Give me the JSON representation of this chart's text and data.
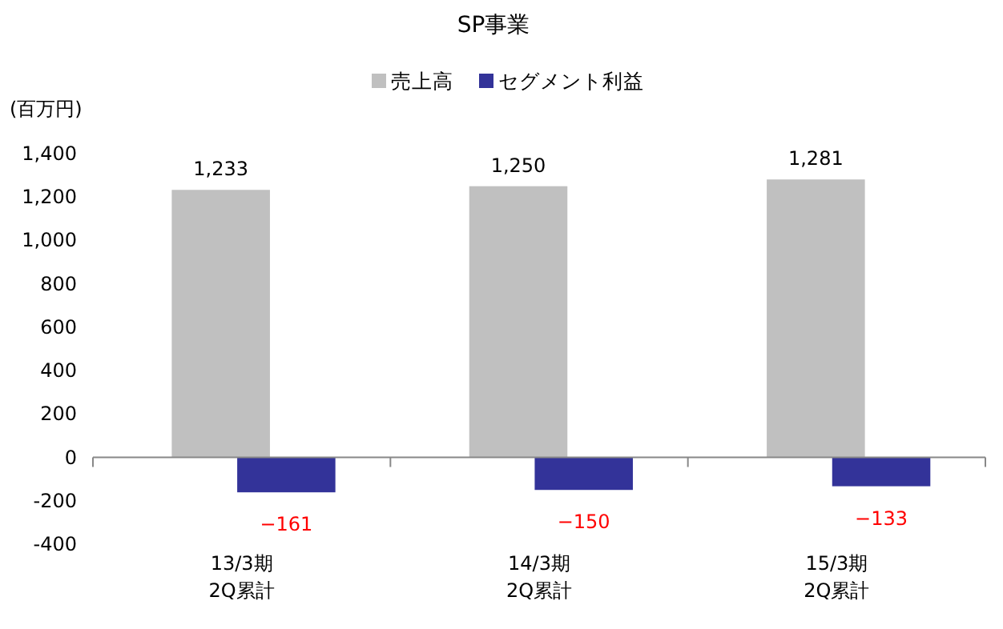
{
  "chart_data": {
    "type": "bar",
    "title": "SP事業",
    "ylabel": "(百万円)",
    "categories": [
      "13/3期\n2Q累計",
      "14/3期\n2Q累計",
      "15/3期\n2Q累計"
    ],
    "series": [
      {
        "name": "売上高",
        "color": "#c0c0c0",
        "values": [
          1233,
          1250,
          1281
        ],
        "value_labels": [
          "1,233",
          "1,250",
          "1,281"
        ]
      },
      {
        "name": "セグメント利益",
        "color": "#333399",
        "values": [
          -161,
          -150,
          -133
        ],
        "value_labels": [
          "−161",
          "−150",
          "−133"
        ]
      }
    ],
    "ylim": [
      -400,
      1400
    ],
    "yticks": [
      {
        "value": -400,
        "label": "-400"
      },
      {
        "value": -200,
        "label": "-200"
      },
      0,
      200,
      400,
      600,
      800,
      {
        "value": 1000,
        "label": "1,000"
      },
      {
        "value": 1200,
        "label": "1,200"
      },
      {
        "value": 1400,
        "label": "1,400"
      }
    ],
    "legend": "top"
  }
}
